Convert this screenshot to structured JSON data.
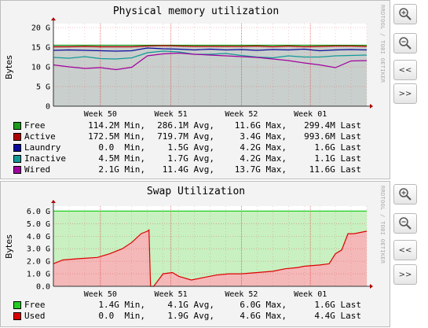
{
  "watermark": "RRDTOOL / TOBI OETIKER",
  "buttons": {
    "zoom_in": "+",
    "zoom_out": "−",
    "prev": "<<",
    "next": ">>"
  },
  "memory_chart": {
    "title": "Physical memory utilization",
    "ylabel": "Bytes",
    "legend": [
      {
        "name": "Free",
        "color": "#1a9c1a",
        "min": "114.2M Min,",
        "avg": "286.1M Avg,",
        "max": "11.6G Max,",
        "last": "299.4M Last"
      },
      {
        "name": "Active",
        "color": "#b00000",
        "min": "172.5M Min,",
        "avg": "719.7M Avg,",
        "max": "3.4G Max,",
        "last": "993.6M Last"
      },
      {
        "name": "Laundry",
        "color": "#0a0a9c",
        "min": "0.0  Min,",
        "avg": "1.5G Avg,",
        "max": "4.2G Max,",
        "last": "1.6G Last"
      },
      {
        "name": "Inactive",
        "color": "#119999",
        "min": "4.5M Min,",
        "avg": "1.7G Avg,",
        "max": "4.2G Max,",
        "last": "1.1G Last"
      },
      {
        "name": "Wired",
        "color": "#a000a0",
        "min": "2.1G Min,",
        "avg": "11.4G Avg,",
        "max": "13.7G Max,",
        "last": "11.6G Last"
      }
    ]
  },
  "swap_chart": {
    "title": "Swap Utilization",
    "ylabel": "Bytes",
    "legend": [
      {
        "name": "Free",
        "color": "#22cc22",
        "min": "1.4G Min,",
        "avg": "4.1G Avg,",
        "max": "6.0G Max,",
        "last": "1.6G Last"
      },
      {
        "name": "Used",
        "color": "#dd0000",
        "min": "0.0  Min,",
        "avg": "1.9G Avg,",
        "max": "4.6G Max,",
        "last": "4.4G Last"
      }
    ]
  },
  "chart_data": [
    {
      "type": "area",
      "title": "Physical memory utilization",
      "ylabel": "Bytes",
      "x_ticks": [
        "Week 50",
        "Week 51",
        "Week 52",
        "Week 01"
      ],
      "y_ticks": [
        "0",
        "5 G",
        "10 G",
        "15 G",
        "20 G"
      ],
      "ylim": [
        0,
        21
      ],
      "y_unit": "G",
      "x": [
        0,
        0.05,
        0.1,
        0.15,
        0.2,
        0.25,
        0.3,
        0.35,
        0.4,
        0.45,
        0.5,
        0.55,
        0.6,
        0.65,
        0.7,
        0.75,
        0.8,
        0.85,
        0.9,
        0.95,
        1.0
      ],
      "x_meaning": "fraction of time window",
      "series": [
        {
          "name": "Wired",
          "color": "#a000a0",
          "values": [
            10.5,
            10.0,
            9.6,
            9.8,
            9.3,
            9.9,
            12.8,
            13.3,
            13.5,
            13.2,
            13.0,
            12.8,
            12.6,
            12.4,
            12.0,
            11.6,
            11.0,
            10.5,
            9.8,
            11.5,
            11.6
          ]
        },
        {
          "name": "Inactive",
          "color": "#119999",
          "values": [
            12.4,
            12.2,
            12.6,
            12.1,
            12.0,
            12.3,
            13.6,
            14.0,
            13.8,
            13.2,
            13.2,
            13.4,
            12.9,
            12.5,
            12.3,
            12.8,
            12.5,
            12.5,
            12.8,
            12.9,
            13.0
          ]
        },
        {
          "name": "Laundry",
          "color": "#0a0a9c",
          "values": [
            14.2,
            14.3,
            14.2,
            14.1,
            14.0,
            14.1,
            14.8,
            14.6,
            14.5,
            14.3,
            14.5,
            14.3,
            14.4,
            14.2,
            14.4,
            14.3,
            14.5,
            14.1,
            14.3,
            14.4,
            14.3
          ]
        },
        {
          "name": "Active",
          "color": "#b00000",
          "values": [
            15.1,
            15.1,
            15.2,
            15.1,
            15.1,
            15.1,
            15.3,
            15.4,
            15.3,
            15.2,
            15.2,
            15.2,
            15.2,
            15.3,
            15.1,
            15.3,
            15.1,
            15.2,
            15.3,
            15.3,
            15.2
          ]
        },
        {
          "name": "Free",
          "color": "#1a9c1a",
          "values": [
            15.5,
            15.5,
            15.5,
            15.5,
            15.5,
            15.5,
            15.5,
            15.5,
            15.5,
            15.5,
            15.5,
            15.5,
            15.5,
            15.5,
            15.5,
            15.5,
            15.5,
            15.5,
            15.5,
            15.5,
            15.5
          ]
        }
      ]
    },
    {
      "type": "area",
      "title": "Swap Utilization",
      "ylabel": "Bytes",
      "x_ticks": [
        "Week 50",
        "Week 51",
        "Week 52",
        "Week 01"
      ],
      "y_ticks": [
        "0.0",
        "1.0 G",
        "2.0 G",
        "3.0 G",
        "4.0 G",
        "5.0 G",
        "6.0 G"
      ],
      "ylim": [
        0,
        6.4
      ],
      "y_unit": "G",
      "x": [
        0,
        0.03,
        0.08,
        0.14,
        0.18,
        0.22,
        0.25,
        0.28,
        0.3,
        0.305,
        0.31,
        0.32,
        0.35,
        0.38,
        0.4,
        0.44,
        0.48,
        0.52,
        0.56,
        0.6,
        0.65,
        0.7,
        0.74,
        0.78,
        0.8,
        0.85,
        0.88,
        0.9,
        0.92,
        0.94,
        0.96,
        0.98,
        1.0
      ],
      "x_meaning": "fraction of time window",
      "series": [
        {
          "name": "Used",
          "color": "#dd0000",
          "values": [
            1.8,
            2.1,
            2.2,
            2.3,
            2.6,
            3.0,
            3.5,
            4.2,
            4.4,
            4.5,
            0.0,
            0.0,
            1.0,
            1.1,
            0.8,
            0.5,
            0.7,
            0.9,
            1.0,
            1.0,
            1.1,
            1.2,
            1.4,
            1.5,
            1.6,
            1.7,
            1.8,
            2.6,
            2.9,
            4.2,
            4.2,
            4.3,
            4.4
          ]
        },
        {
          "name": "Free",
          "color": "#22cc22",
          "values": [
            6.0,
            6.0,
            6.0,
            6.0,
            6.0,
            6.0,
            6.0,
            6.0,
            6.0,
            6.0,
            6.0,
            6.0,
            6.0,
            6.0,
            6.0,
            6.0,
            6.0,
            6.0,
            6.0,
            6.0,
            6.0,
            6.0,
            6.0,
            6.0,
            6.0,
            6.0,
            6.0,
            6.0,
            6.0,
            6.0,
            6.0,
            6.0,
            6.0
          ]
        }
      ]
    }
  ]
}
